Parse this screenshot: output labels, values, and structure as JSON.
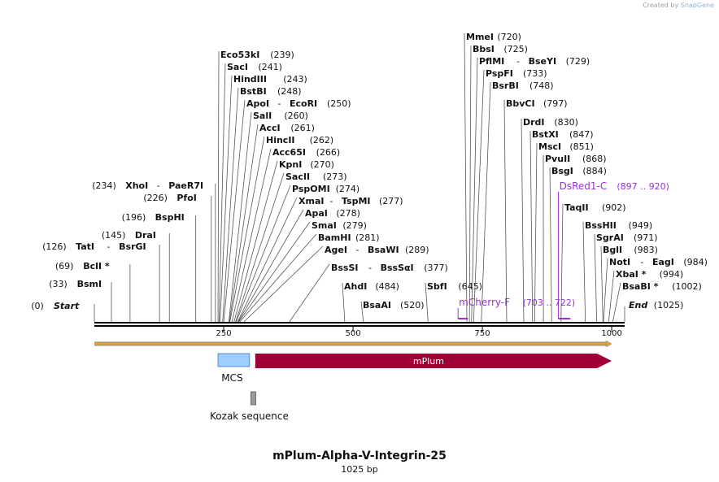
{
  "credit": {
    "prefix": "Created by",
    "brand": "SnapGene"
  },
  "plasmid": {
    "name": "mPlum-Alpha-V-Integrin-25",
    "length_label": "1025 bp",
    "length": 1025
  },
  "colors": {
    "feature_label": "#9b30d9",
    "mplum": "#9e0036",
    "mcs": "#9ccfff",
    "kozak": "#9a9a9a",
    "orf_arrow": "#e6a12a"
  },
  "ticks": [
    {
      "pos": 250,
      "label": "250"
    },
    {
      "pos": 500,
      "label": "500"
    },
    {
      "pos": 750,
      "label": "750"
    },
    {
      "pos": 1000,
      "label": "1000"
    }
  ],
  "sites": [
    {
      "pos": 0,
      "names": [
        "Start"
      ],
      "num": "(0)",
      "italic": true,
      "side": "left"
    },
    {
      "pos": 33,
      "names": [
        "BsmI"
      ],
      "num": "(33)",
      "side": "left"
    },
    {
      "pos": 69,
      "names": [
        "BclI *"
      ],
      "num": "(69)",
      "side": "left"
    },
    {
      "pos": 126,
      "names": [
        "TatI",
        "BsrGI"
      ],
      "num": "(126)",
      "side": "left"
    },
    {
      "pos": 145,
      "names": [
        "DraI"
      ],
      "num": "(145)",
      "side": "left"
    },
    {
      "pos": 196,
      "names": [
        "BspHI"
      ],
      "num": "(196)",
      "side": "left"
    },
    {
      "pos": 226,
      "names": [
        "PfoI"
      ],
      "num": "(226)",
      "side": "left"
    },
    {
      "pos": 234,
      "names": [
        "XhoI",
        "PaeR7I"
      ],
      "num": "(234)",
      "side": "left"
    },
    {
      "pos": 239,
      "names": [
        "Eco53kI"
      ],
      "num": "(239)",
      "side": "right"
    },
    {
      "pos": 241,
      "names": [
        "SacI"
      ],
      "num": "(241)",
      "side": "right"
    },
    {
      "pos": 243,
      "names": [
        "HindIII"
      ],
      "num": "(243)",
      "side": "right"
    },
    {
      "pos": 248,
      "names": [
        "BstBI"
      ],
      "num": "(248)",
      "side": "right"
    },
    {
      "pos": 250,
      "names": [
        "ApoI",
        "EcoRI"
      ],
      "num": "(250)",
      "side": "right"
    },
    {
      "pos": 260,
      "names": [
        "SalI"
      ],
      "num": "(260)",
      "side": "right"
    },
    {
      "pos": 261,
      "names": [
        "AccI"
      ],
      "num": "(261)",
      "side": "right"
    },
    {
      "pos": 262,
      "names": [
        "HincII"
      ],
      "num": "(262)",
      "side": "right"
    },
    {
      "pos": 266,
      "names": [
        "Acc65I"
      ],
      "num": "(266)",
      "side": "right"
    },
    {
      "pos": 270,
      "names": [
        "KpnI"
      ],
      "num": "(270)",
      "side": "right"
    },
    {
      "pos": 273,
      "names": [
        "SacII"
      ],
      "num": "(273)",
      "side": "right"
    },
    {
      "pos": 274,
      "names": [
        "PspOMI"
      ],
      "num": "(274)",
      "side": "right"
    },
    {
      "pos": 277,
      "names": [
        "XmaI",
        "TspMI"
      ],
      "num": "(277)",
      "side": "right"
    },
    {
      "pos": 278,
      "names": [
        "ApaI"
      ],
      "num": "(278)",
      "side": "right"
    },
    {
      "pos": 279,
      "names": [
        "SmaI"
      ],
      "num": "(279)",
      "side": "right"
    },
    {
      "pos": 281,
      "names": [
        "BamHI"
      ],
      "num": "(281)",
      "side": "right"
    },
    {
      "pos": 289,
      "names": [
        "AgeI",
        "BsaWI"
      ],
      "num": "(289)",
      "side": "right"
    },
    {
      "pos": 377,
      "names": [
        "BssSI",
        "BssSαI"
      ],
      "num": "(377)",
      "side": "right"
    },
    {
      "pos": 484,
      "names": [
        "AhdI"
      ],
      "num": "(484)",
      "side": "right"
    },
    {
      "pos": 520,
      "names": [
        "BsaAI"
      ],
      "num": "(520)",
      "side": "right"
    },
    {
      "pos": 645,
      "names": [
        "SbfI"
      ],
      "num": "(645)",
      "side": "right"
    },
    {
      "pos": 720,
      "names": [
        "MmeI"
      ],
      "num": "(720)",
      "side": "right"
    },
    {
      "pos": 725,
      "names": [
        "BbsI"
      ],
      "num": "(725)",
      "side": "right"
    },
    {
      "pos": 729,
      "names": [
        "PflMI",
        "BseYI"
      ],
      "num": "(729)",
      "side": "right"
    },
    {
      "pos": 733,
      "names": [
        "PspFI"
      ],
      "num": "(733)",
      "side": "right"
    },
    {
      "pos": 748,
      "names": [
        "BsrBI"
      ],
      "num": "(748)",
      "side": "right"
    },
    {
      "pos": 797,
      "names": [
        "BbvCI"
      ],
      "num": "(797)",
      "side": "right"
    },
    {
      "pos": 830,
      "names": [
        "DrdI"
      ],
      "num": "(830)",
      "side": "right"
    },
    {
      "pos": 847,
      "names": [
        "BstXI"
      ],
      "num": "(847)",
      "side": "right"
    },
    {
      "pos": 851,
      "names": [
        "MscI"
      ],
      "num": "(851)",
      "side": "right"
    },
    {
      "pos": 868,
      "names": [
        "PvuII"
      ],
      "num": "(868)",
      "side": "right"
    },
    {
      "pos": 884,
      "names": [
        "BsgI"
      ],
      "num": "(884)",
      "side": "right"
    },
    {
      "pos": 902,
      "names": [
        "TaqII"
      ],
      "num": "(902)",
      "side": "right"
    },
    {
      "pos": 949,
      "names": [
        "BssHII"
      ],
      "num": "(949)",
      "side": "right"
    },
    {
      "pos": 971,
      "names": [
        "SgrAI"
      ],
      "num": "(971)",
      "side": "right"
    },
    {
      "pos": 983,
      "names": [
        "BglI"
      ],
      "num": "(983)",
      "side": "right"
    },
    {
      "pos": 984,
      "names": [
        "NotI",
        "EagI"
      ],
      "num": "(984)",
      "side": "right"
    },
    {
      "pos": 994,
      "names": [
        "XbaI *"
      ],
      "num": "(994)",
      "side": "right"
    },
    {
      "pos": 1002,
      "names": [
        "BsaBI *"
      ],
      "num": "(1002)",
      "side": "right"
    },
    {
      "pos": 1025,
      "names": [
        "End"
      ],
      "num": "(1025)",
      "italic": true,
      "side": "right"
    }
  ],
  "primers": [
    {
      "name": "mCherry-F",
      "range": "(703 .. 722)",
      "start": 703,
      "end": 722
    },
    {
      "name": "DsRed1-C",
      "range": "(897 .. 920)",
      "start": 897,
      "end": 920
    }
  ],
  "features": [
    {
      "name": "mPlum",
      "start": 311,
      "end": 1000,
      "kind": "arrow"
    },
    {
      "name": "MCS",
      "start": 239,
      "end": 300,
      "kind": "box"
    },
    {
      "name": "Kozak sequence",
      "start": 301,
      "end": 310,
      "kind": "small"
    }
  ],
  "orf": {
    "start": 0,
    "end": 1000
  }
}
